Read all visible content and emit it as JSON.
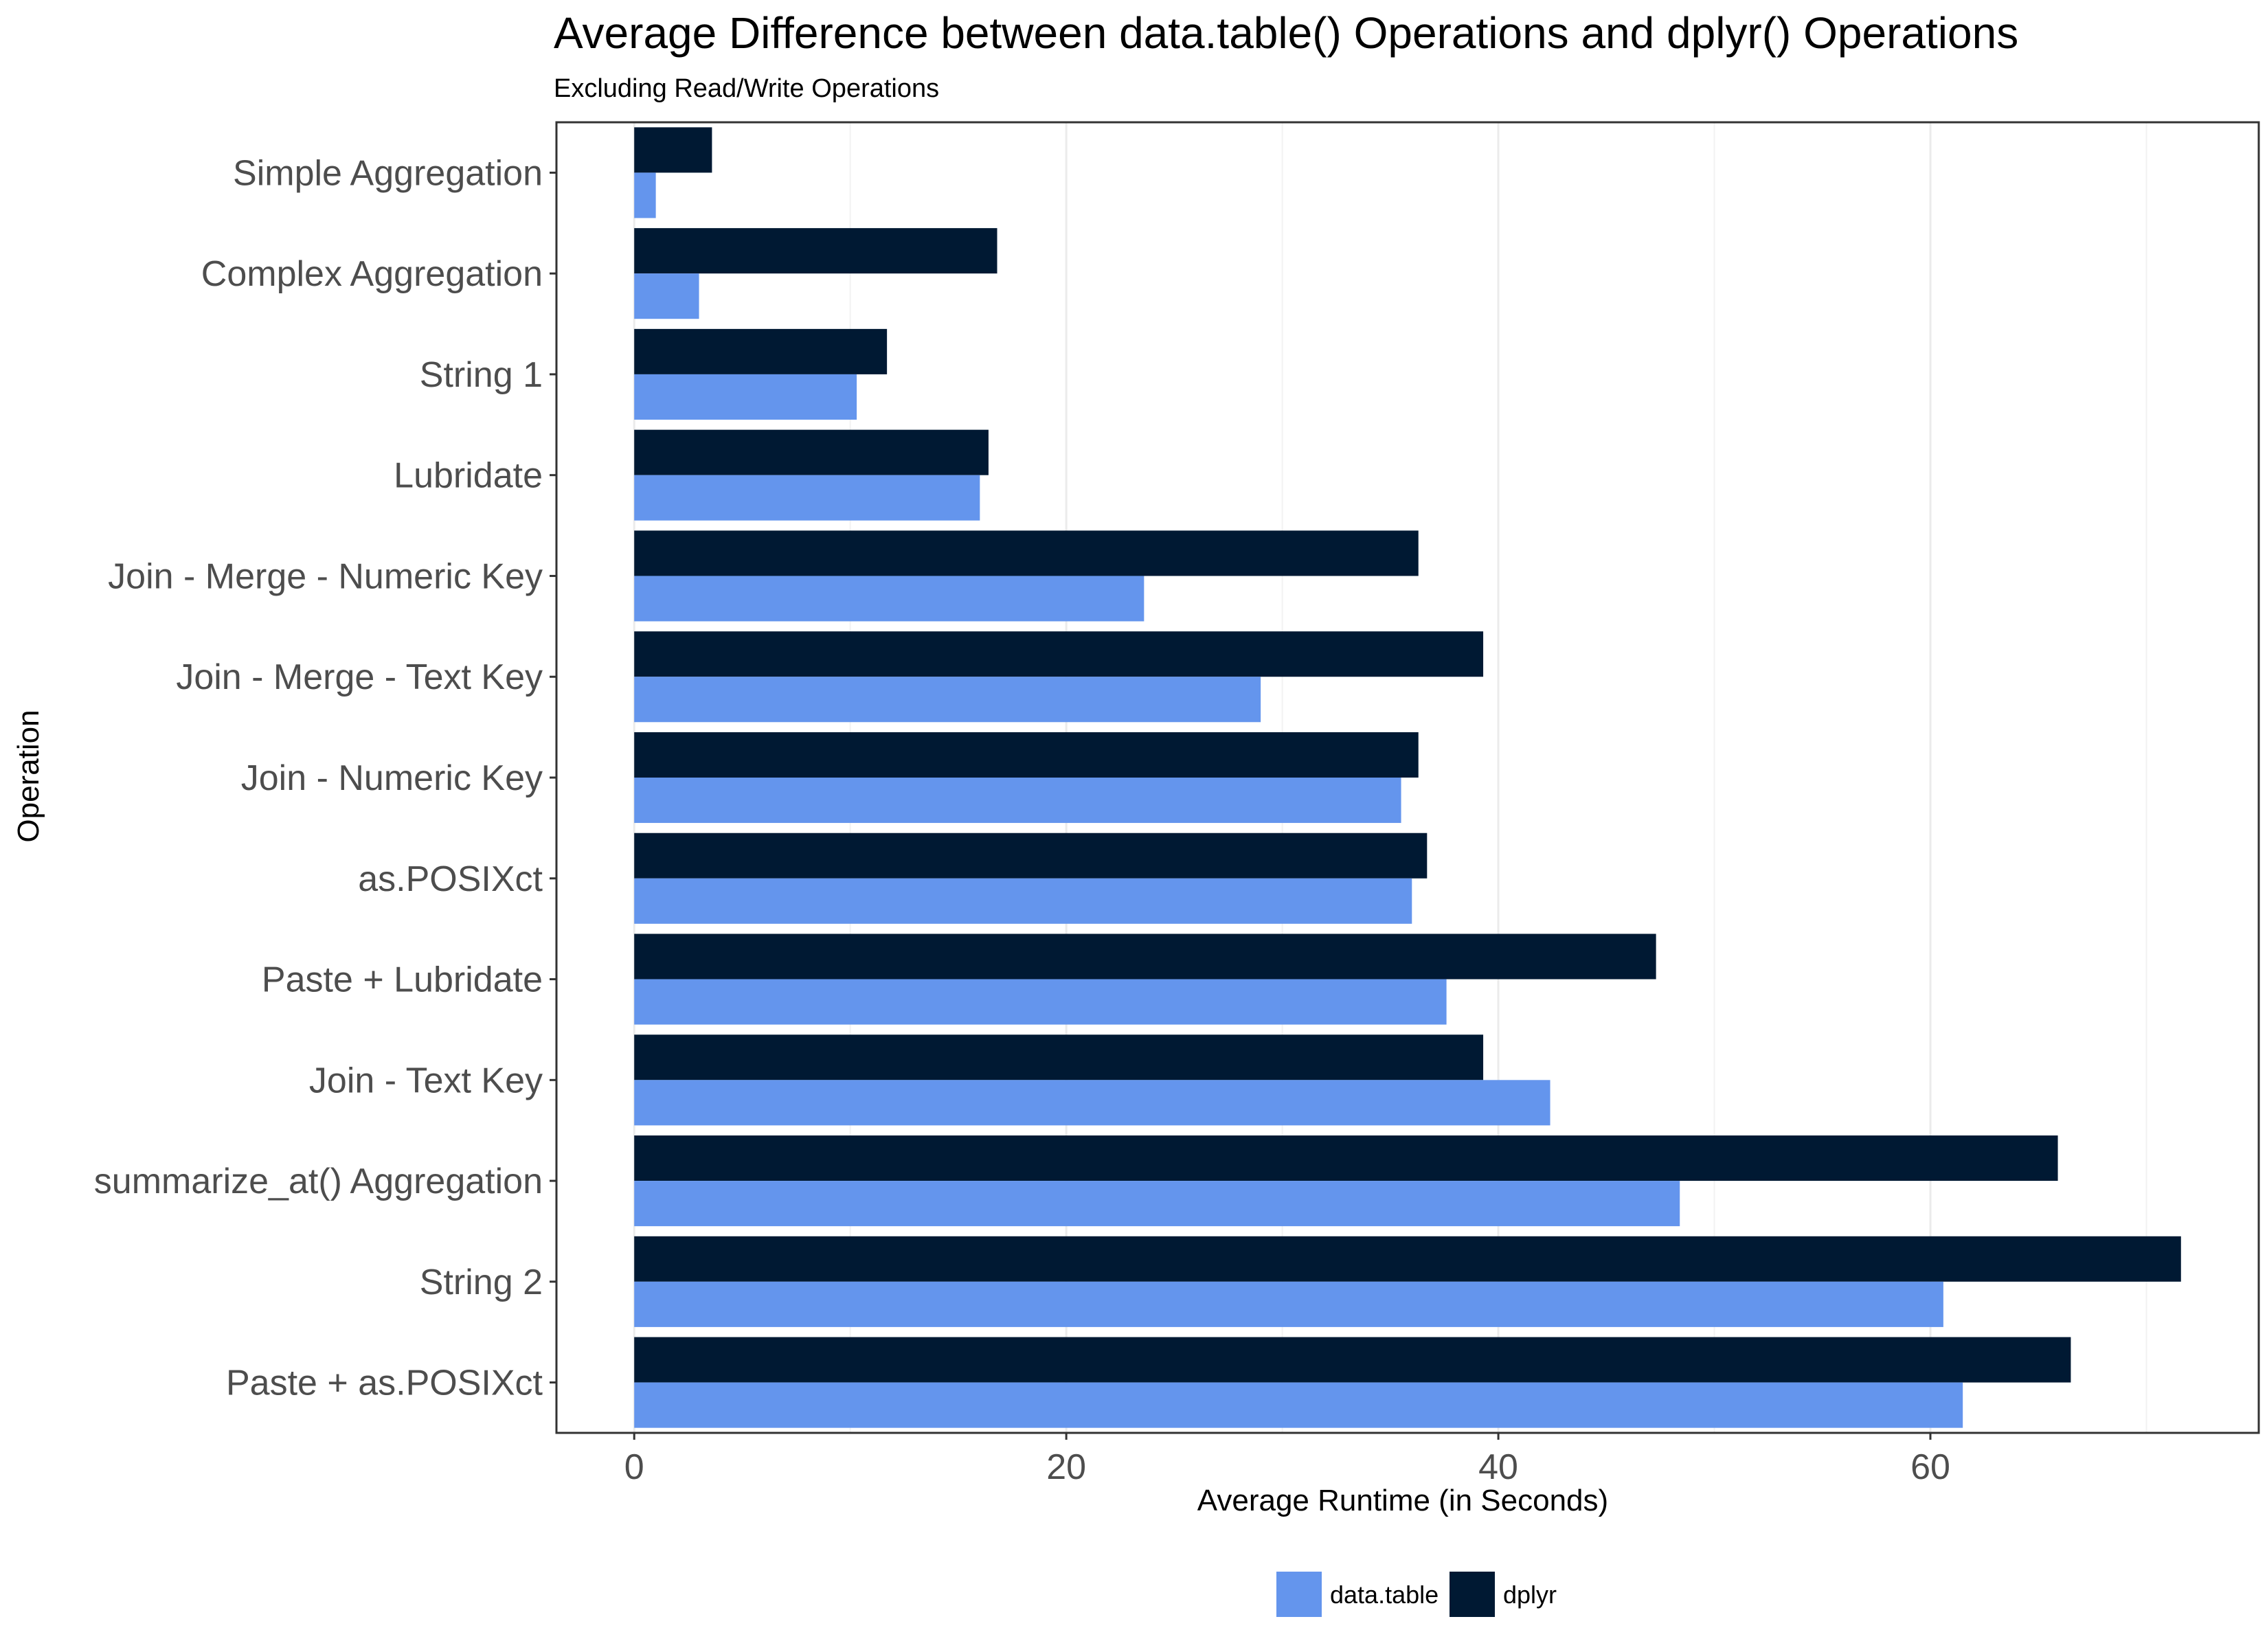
{
  "chart_data": {
    "type": "bar",
    "orientation": "horizontal",
    "title": "Average Difference between data.table() Operations and dplyr() Operations",
    "subtitle": "Excluding Read/Write Operations",
    "xlabel": "Average Runtime (in Seconds)",
    "ylabel": "Operation",
    "xlim": [
      -3.6,
      75.2
    ],
    "xticks": [
      0,
      20,
      40,
      60
    ],
    "grid": true,
    "legend_position": "bottom",
    "categories": [
      "Simple Aggregation",
      "Complex Aggregation",
      "String 1",
      "Lubridate",
      "Join - Merge - Numeric Key",
      "Join - Merge - Text Key",
      "Join - Numeric Key",
      "as.POSIXct",
      "Paste + Lubridate",
      "Join - Text Key",
      "summarize_at() Aggregation",
      "String 2",
      "Paste + as.POSIXct"
    ],
    "series": [
      {
        "name": "data.table",
        "color": "#6495ed",
        "values": [
          1.0,
          3.0,
          10.3,
          16.0,
          23.6,
          29.0,
          35.5,
          36.0,
          37.6,
          42.4,
          48.4,
          60.6,
          61.5
        ]
      },
      {
        "name": "dplyr",
        "color": "#001933",
        "values": [
          3.6,
          16.8,
          11.7,
          16.4,
          36.3,
          39.3,
          36.3,
          36.7,
          47.3,
          39.3,
          65.9,
          71.6,
          66.5
        ]
      }
    ]
  }
}
